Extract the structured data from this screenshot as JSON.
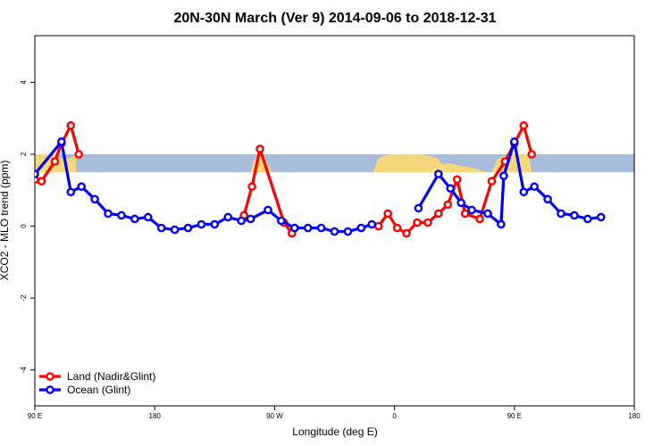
{
  "chart_data": {
    "type": "line",
    "title": "20N-30N March (Ver 9)   2014-09-06 to 2018-12-31",
    "xlabel": "Longitude (deg E)",
    "ylabel": "XCO2 - MLO trend (ppm)",
    "xlim": [
      90,
      540
    ],
    "ylim": [
      -5,
      5.3
    ],
    "x_ticks": [
      {
        "value": 90,
        "label": "90 E"
      },
      {
        "value": 180,
        "label": "180"
      },
      {
        "value": 270,
        "label": "90 W"
      },
      {
        "value": 360,
        "label": "0"
      },
      {
        "value": 450,
        "label": "90 E"
      },
      {
        "value": 540,
        "label": "180"
      }
    ],
    "y_ticks": [
      {
        "value": -4,
        "label": "-4"
      },
      {
        "value": -2,
        "label": "-2"
      },
      {
        "value": 0,
        "label": "0"
      },
      {
        "value": 2,
        "label": "2"
      },
      {
        "value": 4,
        "label": "4"
      }
    ],
    "band": {
      "ymin": 1.5,
      "ymax": 2.0,
      "ocean_color": "#a8bcdc",
      "land_color": "#f5d77c"
    },
    "legend_position": "bottom-left",
    "grid": false,
    "series": [
      {
        "name": "Land (Nadir&Glint)",
        "color": "#ff0000",
        "segments": [
          [
            [
              90,
              1.3
            ],
            [
              95,
              1.25
            ],
            [
              105,
              1.8
            ],
            [
              110,
              2.3
            ],
            [
              117,
              2.8
            ],
            [
              123,
              2.0
            ]
          ],
          [
            [
              247,
              0.3
            ],
            [
              253,
              1.1
            ],
            [
              259,
              2.15
            ],
            [
              277,
              0.1
            ],
            [
              283,
              -0.2
            ]
          ],
          [
            [
              348,
              0.0
            ],
            [
              355,
              0.35
            ],
            [
              362,
              -0.05
            ],
            [
              369,
              -0.2
            ],
            [
              377,
              0.1
            ],
            [
              385,
              0.1
            ],
            [
              393,
              0.35
            ],
            [
              400,
              0.6
            ],
            [
              407,
              1.3
            ],
            [
              413,
              0.35
            ],
            [
              424,
              0.2
            ],
            [
              433,
              1.25
            ],
            [
              443,
              1.8
            ],
            [
              450,
              2.3
            ],
            [
              457,
              2.8
            ],
            [
              463,
              2.0
            ]
          ]
        ]
      },
      {
        "name": "Ocean (Glint)",
        "color": "#0000ff",
        "segments": [
          [
            [
              90,
              1.45
            ],
            [
              110,
              2.35
            ],
            [
              117,
              0.95
            ],
            [
              125,
              1.1
            ],
            [
              135,
              0.75
            ],
            [
              145,
              0.35
            ],
            [
              155,
              0.3
            ],
            [
              165,
              0.2
            ],
            [
              175,
              0.25
            ],
            [
              185,
              -0.05
            ],
            [
              195,
              -0.1
            ],
            [
              205,
              -0.05
            ],
            [
              215,
              0.05
            ],
            [
              225,
              0.05
            ],
            [
              235,
              0.25
            ],
            [
              245,
              0.15
            ],
            [
              252,
              0.2
            ],
            [
              265,
              0.45
            ],
            [
              275,
              0.15
            ],
            [
              285,
              -0.05
            ],
            [
              295,
              -0.05
            ],
            [
              305,
              -0.05
            ],
            [
              315,
              -0.15
            ],
            [
              325,
              -0.15
            ],
            [
              335,
              -0.05
            ],
            [
              343,
              0.05
            ]
          ],
          [
            [
              378,
              0.5
            ],
            [
              393,
              1.45
            ],
            [
              402,
              1.05
            ],
            [
              410,
              0.65
            ],
            [
              418,
              0.45
            ],
            [
              430,
              0.35
            ],
            [
              440,
              0.05
            ],
            [
              442,
              1.4
            ],
            [
              450,
              2.35
            ],
            [
              457,
              0.95
            ],
            [
              465,
              1.1
            ],
            [
              475,
              0.75
            ],
            [
              485,
              0.35
            ],
            [
              495,
              0.3
            ],
            [
              505,
              0.2
            ],
            [
              515,
              0.25
            ]
          ]
        ]
      }
    ]
  }
}
